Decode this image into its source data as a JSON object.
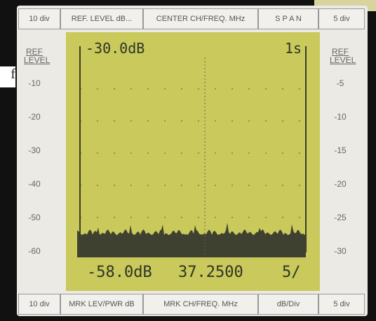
{
  "outside_label": "f",
  "header": [
    "10 div",
    "REF. LEVEL dB...",
    "CENTER CH/FREQ. MHz",
    "S P A N",
    "5 div"
  ],
  "footer": [
    "10 div",
    "MRK LEV/PWR dB",
    "MRK CH/FREQ. MHz",
    "dB/Div",
    "5 div"
  ],
  "left_scale": {
    "title": "REF LEVEL",
    "labels": [
      "-10",
      "-20",
      "-30",
      "-40",
      "-50",
      "-60"
    ]
  },
  "right_scale": {
    "title": "REF LEVEL",
    "labels": [
      "-5",
      "-10",
      "-15",
      "-20",
      "-25",
      "-30"
    ]
  },
  "screen": {
    "ref_level": "-30.0dB",
    "span": "1s",
    "marker_level": "-58.0dB",
    "marker_freq": "37.2500",
    "scale": "5/"
  }
}
